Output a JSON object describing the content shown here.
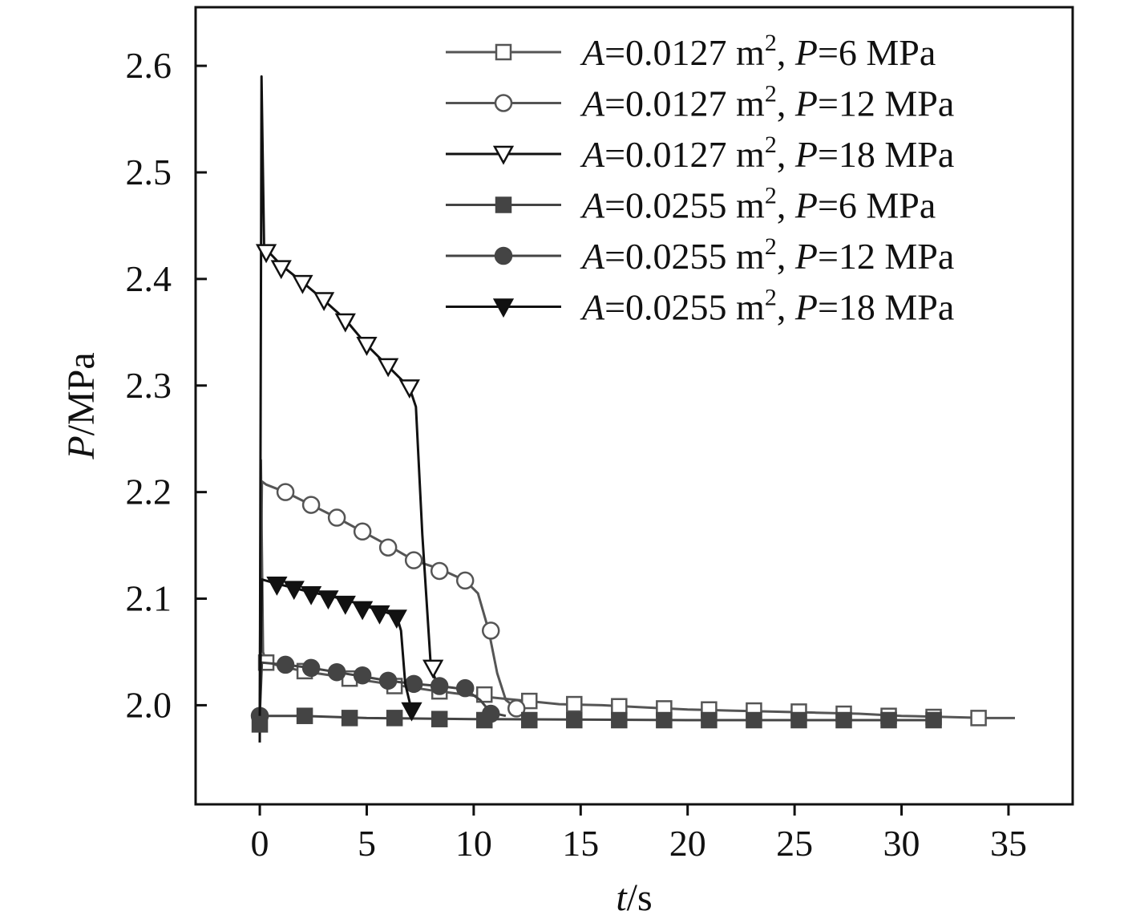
{
  "chart_data": {
    "type": "line",
    "title": "",
    "xlabel_var": "t",
    "xlabel_unit": "/s",
    "ylabel_var": "P",
    "ylabel_unit": "/MPa",
    "xlim": [
      -3,
      38
    ],
    "ylim": [
      1.907,
      2.655
    ],
    "xticks": [
      "0",
      "5",
      "10",
      "15",
      "20",
      "25",
      "30",
      "35"
    ],
    "yticks": [
      "2.0",
      "2.1",
      "2.2",
      "2.3",
      "2.4",
      "2.5",
      "2.6"
    ],
    "grid": false,
    "legend_position": "top-right",
    "series": [
      {
        "name": "A=0.0127 m², P=6 MPa",
        "legend": {
          "var1": "A",
          "v1": "=0.0127 m",
          "sup": "2",
          "sep": ", ",
          "var2": "P",
          "v2": "=6 MPa"
        },
        "marker": "square-open",
        "color": "#555555",
        "line": [
          [
            0,
            1.985
          ],
          [
            0.05,
            2.23
          ],
          [
            0.15,
            2.05
          ],
          [
            0.3,
            2.04
          ],
          [
            2,
            2.032
          ],
          [
            4,
            2.026
          ],
          [
            6,
            2.02
          ],
          [
            8,
            2.014
          ],
          [
            10,
            2.009
          ],
          [
            12,
            2.005
          ],
          [
            14,
            2.001
          ],
          [
            16,
            2.0
          ],
          [
            18,
            1.998
          ],
          [
            20,
            1.996
          ],
          [
            22,
            1.995
          ],
          [
            24,
            1.994
          ],
          [
            26,
            1.993
          ],
          [
            28,
            1.992
          ],
          [
            30,
            1.99
          ],
          [
            32,
            1.989
          ],
          [
            34,
            1.988
          ],
          [
            35.3,
            1.988
          ]
        ],
        "markers": [
          [
            0.3,
            2.04
          ],
          [
            2.1,
            2.032
          ],
          [
            4.2,
            2.025
          ],
          [
            6.3,
            2.018
          ],
          [
            8.4,
            2.013
          ],
          [
            10.5,
            2.01
          ],
          [
            12.6,
            2.004
          ],
          [
            14.7,
            2.001
          ],
          [
            16.8,
            1.999
          ],
          [
            18.9,
            1.997
          ],
          [
            21,
            1.996
          ],
          [
            23.1,
            1.995
          ],
          [
            25.2,
            1.994
          ],
          [
            27.3,
            1.992
          ],
          [
            29.4,
            1.99
          ],
          [
            31.5,
            1.989
          ],
          [
            33.6,
            1.988
          ]
        ]
      },
      {
        "name": "A=0.0127 m², P=12 MPa",
        "legend": {
          "var1": "A",
          "v1": "=0.0127 m",
          "sup": "2",
          "sep": ", ",
          "var2": "P",
          "v2": "=12 MPa"
        },
        "marker": "circle-open",
        "color": "#555555",
        "line": [
          [
            0,
            1.985
          ],
          [
            0.1,
            2.21
          ],
          [
            0.3,
            2.207
          ],
          [
            1.2,
            2.2
          ],
          [
            2.4,
            2.188
          ],
          [
            3.6,
            2.176
          ],
          [
            4.8,
            2.163
          ],
          [
            6,
            2.15
          ],
          [
            7.2,
            2.136
          ],
          [
            8.4,
            2.128
          ],
          [
            9.6,
            2.117
          ],
          [
            10.2,
            2.105
          ],
          [
            10.7,
            2.07
          ],
          [
            11.1,
            2.03
          ],
          [
            11.5,
            2.005
          ],
          [
            12,
            1.997
          ]
        ],
        "markers": [
          [
            1.2,
            2.2
          ],
          [
            2.4,
            2.188
          ],
          [
            3.6,
            2.176
          ],
          [
            4.8,
            2.163
          ],
          [
            6,
            2.148
          ],
          [
            7.2,
            2.136
          ],
          [
            8.4,
            2.126
          ],
          [
            9.6,
            2.117
          ],
          [
            10.8,
            2.07
          ],
          [
            12,
            1.997
          ]
        ]
      },
      {
        "name": "A=0.0127 m², P=18 MPa",
        "legend": {
          "var1": "A",
          "v1": "=0.0127 m",
          "sup": "2",
          "sep": ", ",
          "var2": "P",
          "v2": "=18 MPa"
        },
        "marker": "triangle-down-open",
        "color": "#111111",
        "line": [
          [
            0,
            1.965
          ],
          [
            0.08,
            2.59
          ],
          [
            0.2,
            2.43
          ],
          [
            1,
            2.413
          ],
          [
            2,
            2.397
          ],
          [
            3,
            2.38
          ],
          [
            4,
            2.362
          ],
          [
            5,
            2.338
          ],
          [
            6,
            2.318
          ],
          [
            7,
            2.298
          ],
          [
            7.3,
            2.28
          ],
          [
            7.6,
            2.16
          ],
          [
            8,
            2.035
          ],
          [
            8.3,
            2.02
          ]
        ],
        "markers": [
          [
            0.3,
            2.425
          ],
          [
            1,
            2.41
          ],
          [
            2,
            2.396
          ],
          [
            3,
            2.38
          ],
          [
            4,
            2.36
          ],
          [
            5,
            2.338
          ],
          [
            6,
            2.318
          ],
          [
            7,
            2.298
          ],
          [
            8.1,
            2.035
          ]
        ]
      },
      {
        "name": "A=0.0255 m², P=6 MPa",
        "legend": {
          "var1": "A",
          "v1": "=0.0255 m",
          "sup": "2",
          "sep": ", ",
          "var2": "P",
          "v2": "=6 MPa"
        },
        "marker": "square-filled",
        "color": "#444444",
        "line": [
          [
            0,
            1.985
          ],
          [
            0.2,
            1.99
          ],
          [
            2,
            1.99
          ],
          [
            5,
            1.988
          ],
          [
            10,
            1.987
          ],
          [
            20,
            1.986
          ],
          [
            31.5,
            1.986
          ]
        ],
        "markers": [
          [
            0,
            1.982
          ],
          [
            2.1,
            1.99
          ],
          [
            4.2,
            1.988
          ],
          [
            6.3,
            1.988
          ],
          [
            8.4,
            1.987
          ],
          [
            10.5,
            1.986
          ],
          [
            12.6,
            1.986
          ],
          [
            14.7,
            1.986
          ],
          [
            16.8,
            1.986
          ],
          [
            18.9,
            1.986
          ],
          [
            21,
            1.986
          ],
          [
            23.1,
            1.986
          ],
          [
            25.2,
            1.986
          ],
          [
            27.3,
            1.986
          ],
          [
            29.4,
            1.986
          ],
          [
            31.5,
            1.986
          ]
        ]
      },
      {
        "name": "A=0.0255 m², P=12 MPa",
        "legend": {
          "var1": "A",
          "v1": "=0.0255 m",
          "sup": "2",
          "sep": ", ",
          "var2": "P",
          "v2": "=12 MPa"
        },
        "marker": "circle-filled",
        "color": "#444444",
        "line": [
          [
            0,
            1.99
          ],
          [
            0.1,
            2.04
          ],
          [
            1.2,
            2.038
          ],
          [
            2.4,
            2.035
          ],
          [
            3.6,
            2.031
          ],
          [
            4.8,
            2.027
          ],
          [
            6,
            2.023
          ],
          [
            7.2,
            2.02
          ],
          [
            8.4,
            2.018
          ],
          [
            9.6,
            2.015
          ],
          [
            10.3,
            2.005
          ],
          [
            10.8,
            1.993
          ],
          [
            11.5,
            1.99
          ]
        ],
        "markers": [
          [
            0,
            1.99
          ],
          [
            1.2,
            2.038
          ],
          [
            2.4,
            2.035
          ],
          [
            3.6,
            2.031
          ],
          [
            4.8,
            2.028
          ],
          [
            6,
            2.023
          ],
          [
            7.2,
            2.02
          ],
          [
            8.4,
            2.018
          ],
          [
            9.6,
            2.016
          ],
          [
            10.8,
            1.992
          ]
        ]
      },
      {
        "name": "A=0.0255 m², P=18 MPa",
        "legend": {
          "var1": "A",
          "v1": "=0.0255 m",
          "sup": "2",
          "sep": ", ",
          "var2": "P",
          "v2": "=18 MPa"
        },
        "marker": "triangle-down-filled",
        "color": "#111111",
        "line": [
          [
            0,
            1.99
          ],
          [
            0.1,
            2.118
          ],
          [
            0.8,
            2.114
          ],
          [
            1.6,
            2.11
          ],
          [
            2.4,
            2.106
          ],
          [
            3.2,
            2.103
          ],
          [
            4,
            2.099
          ],
          [
            4.8,
            2.094
          ],
          [
            5.6,
            2.089
          ],
          [
            6.4,
            2.084
          ],
          [
            6.6,
            2.07
          ],
          [
            6.8,
            2.02
          ],
          [
            7.1,
            1.995
          ]
        ],
        "markers": [
          [
            0.8,
            2.113
          ],
          [
            1.6,
            2.109
          ],
          [
            2.4,
            2.104
          ],
          [
            3.2,
            2.1
          ],
          [
            4,
            2.095
          ],
          [
            4.8,
            2.09
          ],
          [
            5.6,
            2.086
          ],
          [
            6.4,
            2.082
          ],
          [
            7.1,
            1.995
          ]
        ]
      }
    ]
  }
}
